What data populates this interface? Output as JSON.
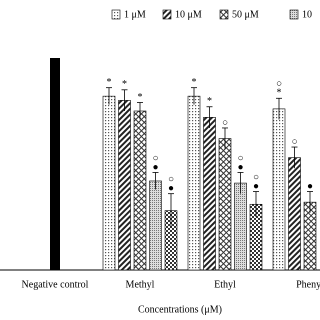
{
  "chart_data": {
    "type": "bar",
    "x_label": "Concentrations (μM)",
    "categories": [
      "Negative control",
      "Methyl",
      "Ethyl",
      "Phenyl"
    ],
    "ylim": [
      0,
      100
    ],
    "control": {
      "value": 100,
      "color": "#000000"
    },
    "series": [
      {
        "name": "1 μM",
        "color": "#555555",
        "pattern": "dots",
        "values": [
          null,
          82,
          82,
          76
        ],
        "errors": [
          null,
          4,
          4,
          5
        ],
        "annotations": [
          null,
          [
            "*"
          ],
          [
            "*"
          ],
          [
            "○",
            "*"
          ]
        ]
      },
      {
        "name": "10 μM",
        "color": "#333333",
        "pattern": "hatch",
        "values": [
          null,
          80,
          72,
          53
        ],
        "errors": [
          null,
          5,
          5,
          5
        ],
        "annotations": [
          null,
          [
            "*"
          ],
          [
            "*"
          ],
          [
            "○"
          ]
        ]
      },
      {
        "name": "50 μM",
        "color": "#444444",
        "pattern": "cross",
        "values": [
          null,
          75,
          62,
          32
        ],
        "errors": [
          null,
          4,
          5,
          5
        ],
        "annotations": [
          null,
          [
            "*"
          ],
          [
            "○"
          ],
          [
            "●"
          ]
        ]
      },
      {
        "name": "10",
        "color": "#666666",
        "pattern": "dense",
        "values": [
          null,
          42,
          41,
          null
        ],
        "errors": [
          null,
          4,
          5,
          null
        ],
        "annotations": [
          null,
          [
            "○",
            "●"
          ],
          [
            "○",
            "●"
          ],
          null
        ]
      },
      {
        "color": "#444444",
        "pattern": "check",
        "values": [
          null,
          28,
          31,
          null
        ],
        "errors": [
          null,
          8,
          6,
          null
        ],
        "annotations": [
          null,
          [
            "○",
            "●"
          ],
          [
            "○",
            "●"
          ],
          null
        ]
      }
    ]
  }
}
